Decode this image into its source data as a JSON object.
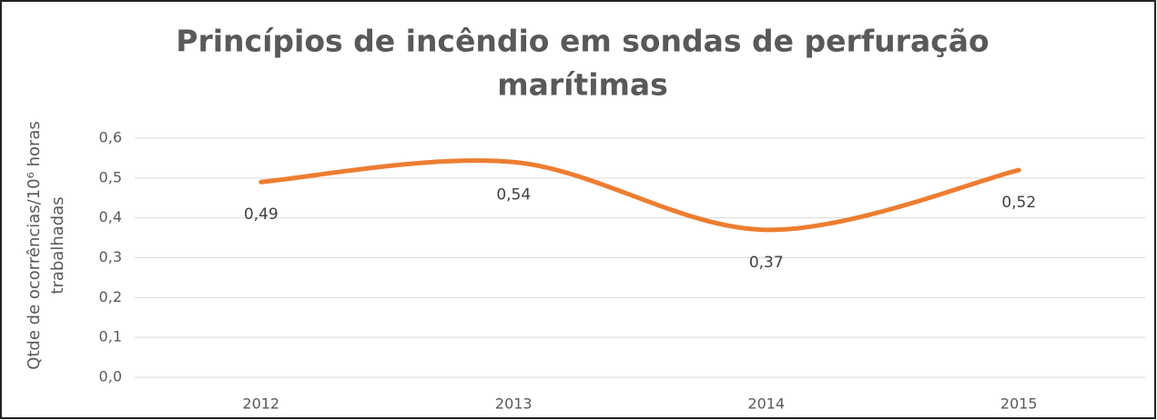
{
  "chart_data": {
    "type": "line",
    "title": [
      "Princípios de incêndio em sondas de perfuração",
      "marítimas"
    ],
    "ylabel": [
      "Qtde de ocorrências/10⁶ horas",
      "trabalhadas"
    ],
    "categories": [
      "2012",
      "2013",
      "2014",
      "2015"
    ],
    "values": [
      0.49,
      0.54,
      0.37,
      0.52
    ],
    "value_labels": [
      "0,49",
      "0,54",
      "0,37",
      "0,52"
    ],
    "color": "#ed7d31",
    "smooth": true,
    "ylim": [
      0,
      0.6
    ],
    "yticks": [
      {
        "value": 0,
        "label": "0,0"
      },
      {
        "value": 0.1,
        "label": "0,1"
      },
      {
        "value": 0.2,
        "label": "0,2"
      },
      {
        "value": 0.3,
        "label": "0,3"
      },
      {
        "value": 0.4,
        "label": "0,4"
      },
      {
        "value": 0.5,
        "label": "0,5"
      },
      {
        "value": 0.6,
        "label": "0,6"
      }
    ],
    "grid": true
  }
}
